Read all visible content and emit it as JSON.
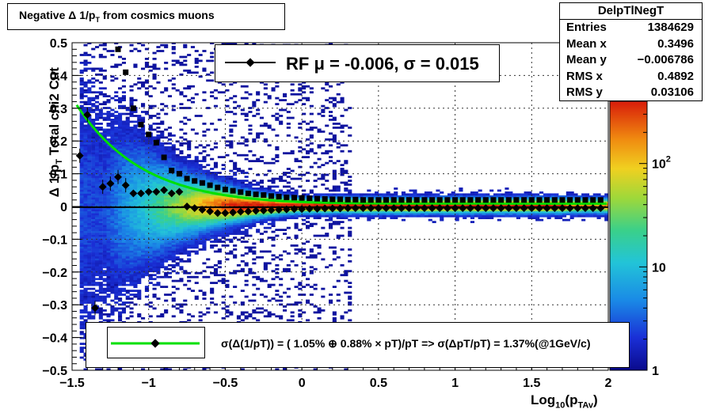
{
  "title": "Negative Δ 1/p_T from cosmics muons",
  "stats": {
    "name": "DelpTlNegT",
    "rows": [
      {
        "label": "Entries",
        "value": "1384629"
      },
      {
        "label": "Mean x",
        "value": "0.3496"
      },
      {
        "label": "Mean y",
        "value": "−0.006786"
      },
      {
        "label": "RMS x",
        "value": "0.4892"
      },
      {
        "label": "RMS y",
        "value": "0.03106"
      }
    ]
  },
  "legend_rf": "RF μ = -0.006, σ =   0.015",
  "legend_resolution": "σ(Δ(1/pT)) = ( 1.05% ⊕  0.88% × pT)/pT => σ(ΔpT/pT) =  1.37%(@1GeV/c)",
  "colors": {
    "fit_curve": "#00e000",
    "markers": "#000000",
    "zero_line": "#000000"
  },
  "chart_data": {
    "type": "heatmap",
    "xlabel": "Log10(pTAv)",
    "ylabel": "Δ 1/pT  Total chi2 Cut",
    "xlim": [
      -1.5,
      2.0
    ],
    "ylim": [
      -0.5,
      0.5
    ],
    "x_ticks": [
      "−1.5",
      "−1",
      "−0.5",
      "0",
      "0.5",
      "1",
      "1.5",
      "2"
    ],
    "y_ticks": [
      "−0.5",
      "−0.4",
      "−0.3",
      "−0.2",
      "−0.1",
      "0",
      "0.1",
      "0.2",
      "0.3",
      "0.4",
      "0.5"
    ],
    "grid": true,
    "colorbar": {
      "scale": "log",
      "range": [
        1,
        400
      ],
      "ticks": [
        {
          "v": 1,
          "label": "1"
        },
        {
          "v": 10,
          "label": "10"
        },
        {
          "v": 100,
          "label": "10^2"
        }
      ]
    },
    "mean_points": [
      {
        "x": -1.45,
        "y": 0.155
      },
      {
        "x": -1.4,
        "y": 0.28
      },
      {
        "x": -1.35,
        "y": -0.31
      },
      {
        "x": -1.3,
        "y": 0.06
      },
      {
        "x": -1.25,
        "y": 0.07
      },
      {
        "x": -1.2,
        "y": 0.09
      },
      {
        "x": -1.15,
        "y": 0.065
      },
      {
        "x": -1.1,
        "y": 0.04
      },
      {
        "x": -1.05,
        "y": 0.04
      },
      {
        "x": -1.0,
        "y": 0.045
      },
      {
        "x": -0.95,
        "y": 0.045
      },
      {
        "x": -0.9,
        "y": 0.05
      },
      {
        "x": -0.85,
        "y": 0.04
      },
      {
        "x": -0.8,
        "y": 0.045
      },
      {
        "x": -0.75,
        "y": 0.0
      },
      {
        "x": -0.7,
        "y": -0.005
      },
      {
        "x": -0.65,
        "y": -0.01
      },
      {
        "x": -0.6,
        "y": -0.015
      },
      {
        "x": -0.55,
        "y": -0.02
      },
      {
        "x": -0.5,
        "y": -0.02
      },
      {
        "x": -0.45,
        "y": -0.018
      },
      {
        "x": -0.4,
        "y": -0.016
      },
      {
        "x": -0.35,
        "y": -0.015
      },
      {
        "x": -0.3,
        "y": -0.013
      },
      {
        "x": -0.25,
        "y": -0.012
      },
      {
        "x": -0.2,
        "y": -0.011
      },
      {
        "x": -0.15,
        "y": -0.01
      },
      {
        "x": -0.1,
        "y": -0.009
      },
      {
        "x": -0.05,
        "y": -0.008
      },
      {
        "x": 0.0,
        "y": -0.008
      },
      {
        "x": 0.05,
        "y": -0.007
      },
      {
        "x": 0.1,
        "y": -0.007
      },
      {
        "x": 0.15,
        "y": -0.006
      },
      {
        "x": 0.2,
        "y": -0.006
      },
      {
        "x": 0.25,
        "y": -0.006
      },
      {
        "x": 0.3,
        "y": -0.005
      },
      {
        "x": 0.35,
        "y": -0.005
      },
      {
        "x": 0.4,
        "y": -0.005
      },
      {
        "x": 0.45,
        "y": -0.005
      },
      {
        "x": 0.5,
        "y": -0.005
      },
      {
        "x": 0.55,
        "y": -0.005
      },
      {
        "x": 0.6,
        "y": -0.005
      },
      {
        "x": 0.65,
        "y": -0.005
      },
      {
        "x": 0.7,
        "y": -0.005
      },
      {
        "x": 0.75,
        "y": -0.005
      },
      {
        "x": 0.8,
        "y": -0.005
      },
      {
        "x": 0.85,
        "y": -0.005
      },
      {
        "x": 0.9,
        "y": -0.005
      },
      {
        "x": 0.95,
        "y": -0.005
      },
      {
        "x": 1.0,
        "y": -0.005
      },
      {
        "x": 1.05,
        "y": -0.005
      },
      {
        "x": 1.1,
        "y": -0.005
      },
      {
        "x": 1.15,
        "y": -0.005
      },
      {
        "x": 1.2,
        "y": -0.005
      },
      {
        "x": 1.25,
        "y": -0.005
      },
      {
        "x": 1.3,
        "y": -0.005
      },
      {
        "x": 1.35,
        "y": -0.005
      },
      {
        "x": 1.4,
        "y": -0.005
      },
      {
        "x": 1.45,
        "y": -0.005
      },
      {
        "x": 1.5,
        "y": -0.005
      },
      {
        "x": 1.55,
        "y": -0.005
      },
      {
        "x": 1.6,
        "y": -0.005
      },
      {
        "x": 1.65,
        "y": -0.005
      },
      {
        "x": 1.7,
        "y": -0.005
      },
      {
        "x": 1.75,
        "y": -0.005
      },
      {
        "x": 1.8,
        "y": -0.005
      },
      {
        "x": 1.85,
        "y": -0.005
      },
      {
        "x": 1.9,
        "y": -0.005
      },
      {
        "x": 1.95,
        "y": -0.005
      }
    ],
    "sigma_points": [
      {
        "x": -1.2,
        "y": 0.48
      },
      {
        "x": -1.15,
        "y": 0.41
      },
      {
        "x": -1.1,
        "y": 0.3
      },
      {
        "x": -1.05,
        "y": 0.25
      },
      {
        "x": -1.0,
        "y": 0.22
      },
      {
        "x": -0.95,
        "y": 0.195
      },
      {
        "x": -0.9,
        "y": 0.15
      },
      {
        "x": -0.85,
        "y": 0.11
      },
      {
        "x": -0.8,
        "y": 0.1
      },
      {
        "x": -0.75,
        "y": 0.085
      },
      {
        "x": -0.7,
        "y": 0.078
      },
      {
        "x": -0.65,
        "y": 0.072
      },
      {
        "x": -0.6,
        "y": 0.065
      },
      {
        "x": -0.55,
        "y": 0.058
      },
      {
        "x": -0.5,
        "y": 0.052
      },
      {
        "x": -0.45,
        "y": 0.048
      },
      {
        "x": -0.4,
        "y": 0.044
      },
      {
        "x": -0.35,
        "y": 0.04
      },
      {
        "x": -0.3,
        "y": 0.037
      },
      {
        "x": -0.25,
        "y": 0.035
      },
      {
        "x": -0.2,
        "y": 0.032
      },
      {
        "x": -0.15,
        "y": 0.03
      },
      {
        "x": -0.1,
        "y": 0.028
      },
      {
        "x": -0.05,
        "y": 0.027
      },
      {
        "x": 0.0,
        "y": 0.026
      },
      {
        "x": 0.05,
        "y": 0.025
      },
      {
        "x": 0.1,
        "y": 0.024
      },
      {
        "x": 0.15,
        "y": 0.023
      },
      {
        "x": 0.2,
        "y": 0.022
      },
      {
        "x": 0.25,
        "y": 0.022
      },
      {
        "x": 0.3,
        "y": 0.021
      },
      {
        "x": 0.35,
        "y": 0.021
      },
      {
        "x": 0.4,
        "y": 0.02
      },
      {
        "x": 0.45,
        "y": 0.02
      },
      {
        "x": 0.5,
        "y": 0.02
      },
      {
        "x": 0.55,
        "y": 0.02
      },
      {
        "x": 0.6,
        "y": 0.02
      },
      {
        "x": 0.65,
        "y": 0.02
      },
      {
        "x": 0.7,
        "y": 0.02
      },
      {
        "x": 0.75,
        "y": 0.02
      },
      {
        "x": 0.8,
        "y": 0.02
      },
      {
        "x": 0.85,
        "y": 0.02
      },
      {
        "x": 0.9,
        "y": 0.02
      },
      {
        "x": 0.95,
        "y": 0.02
      },
      {
        "x": 1.0,
        "y": 0.02
      },
      {
        "x": 1.05,
        "y": 0.02
      },
      {
        "x": 1.1,
        "y": 0.02
      },
      {
        "x": 1.15,
        "y": 0.02
      },
      {
        "x": 1.2,
        "y": 0.02
      },
      {
        "x": 1.25,
        "y": 0.02
      },
      {
        "x": 1.3,
        "y": 0.02
      },
      {
        "x": 1.35,
        "y": 0.02
      },
      {
        "x": 1.4,
        "y": 0.02
      },
      {
        "x": 1.45,
        "y": 0.02
      },
      {
        "x": 1.5,
        "y": 0.02
      },
      {
        "x": 1.55,
        "y": 0.02
      },
      {
        "x": 1.6,
        "y": 0.02
      },
      {
        "x": 1.65,
        "y": 0.02
      },
      {
        "x": 1.7,
        "y": 0.02
      },
      {
        "x": 1.75,
        "y": 0.02
      },
      {
        "x": 1.8,
        "y": 0.02
      },
      {
        "x": 1.85,
        "y": 0.02
      },
      {
        "x": 1.9,
        "y": 0.02
      },
      {
        "x": 1.95,
        "y": 0.02
      }
    ],
    "fit_curve": {
      "a": 0.0105,
      "b": 0.0088
    }
  }
}
